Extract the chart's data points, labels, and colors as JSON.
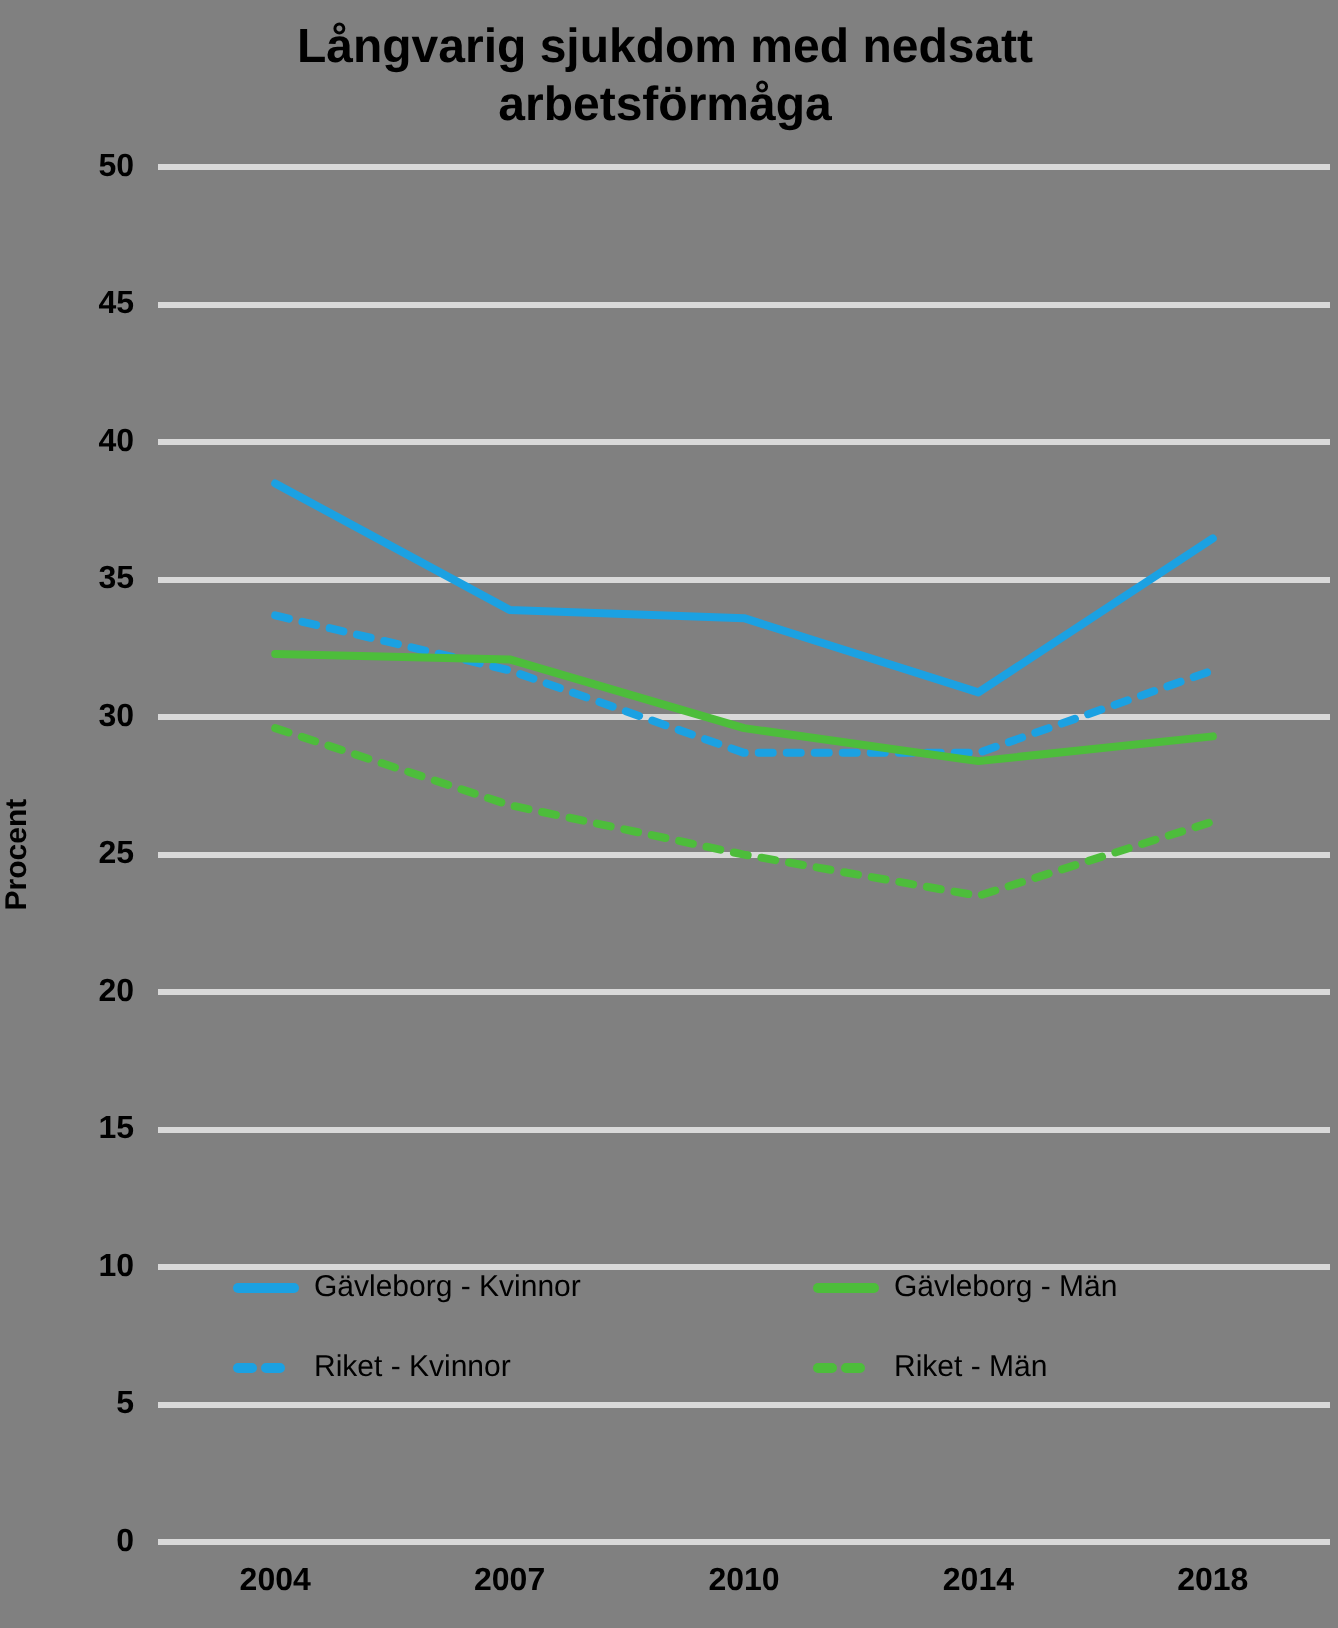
{
  "chart_data": {
    "type": "line",
    "title": "Långvarig sjukdom med nedsatt arbetsförmåga",
    "ylabel": "Procent",
    "categories": [
      "2004",
      "2007",
      "2010",
      "2014",
      "2018"
    ],
    "series": [
      {
        "name": "Gävleborg - Kvinnor",
        "color": "#1ba1e2",
        "line_style": "solid",
        "values": [
          38.5,
          33.9,
          33.6,
          30.9,
          36.5
        ]
      },
      {
        "name": "Gävleborg - Män",
        "color": "#4dbd3b",
        "line_style": "solid",
        "values": [
          32.3,
          32.1,
          29.6,
          28.4,
          29.3
        ]
      },
      {
        "name": "Riket - Kvinnor",
        "color": "#1ba1e2",
        "line_style": "dashed",
        "values": [
          33.7,
          31.7,
          28.7,
          28.7,
          31.7
        ]
      },
      {
        "name": "Riket - Män",
        "color": "#4dbd3b",
        "line_style": "dashed",
        "values": [
          29.6,
          26.8,
          25.0,
          23.5,
          26.2
        ]
      }
    ],
    "ylim": [
      0,
      50
    ],
    "yticks": [
      0,
      5,
      10,
      15,
      20,
      25,
      30,
      35,
      40,
      45,
      50
    ],
    "grid": "y",
    "legend": "bottom",
    "marker": "none"
  }
}
